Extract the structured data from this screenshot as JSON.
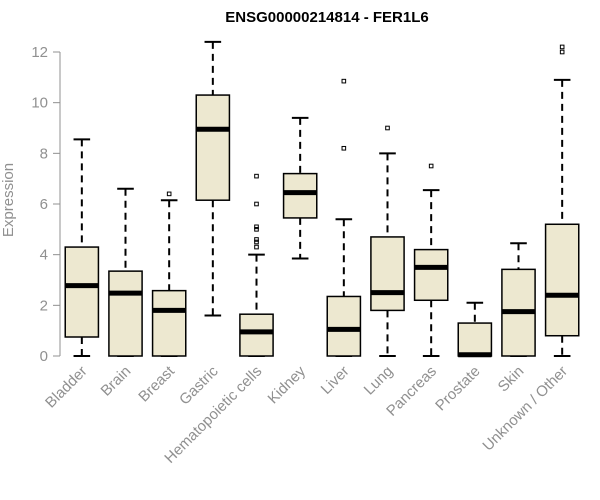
{
  "chart_data": {
    "type": "boxplot",
    "title": "ENSG00000214814 - FER1L6",
    "xlabel": "",
    "ylabel": "Expression",
    "ylim": [
      0,
      12
    ],
    "yticks": [
      0,
      2,
      4,
      6,
      8,
      10,
      12
    ],
    "grid": false,
    "box_color": "#ede8d0",
    "categories": [
      "Bladder",
      "Brain",
      "Breast",
      "Gastric",
      "Hematopoietic cells",
      "Kidney",
      "Liver",
      "Lung",
      "Pancreas",
      "Prostate",
      "Skin",
      "Unknown / Other"
    ],
    "boxes": [
      {
        "min": 0.0,
        "q1": 0.75,
        "median": 2.78,
        "q3": 4.3,
        "max": 8.55,
        "outliers": []
      },
      {
        "min": 0.0,
        "q1": 0.0,
        "median": 2.48,
        "q3": 3.35,
        "max": 6.6,
        "outliers": []
      },
      {
        "min": 0.0,
        "q1": 0.0,
        "median": 1.8,
        "q3": 2.58,
        "max": 6.15,
        "outliers": [
          6.4
        ]
      },
      {
        "min": 1.6,
        "q1": 6.15,
        "median": 8.95,
        "q3": 10.3,
        "max": 12.4,
        "outliers": []
      },
      {
        "min": 0.0,
        "q1": 0.0,
        "median": 0.95,
        "q3": 1.65,
        "max": 4.0,
        "outliers": [
          4.3,
          4.5,
          4.6,
          5.0,
          5.1,
          6.0,
          7.1
        ]
      },
      {
        "min": 3.85,
        "q1": 5.45,
        "median": 6.45,
        "q3": 7.2,
        "max": 9.4,
        "outliers": []
      },
      {
        "min": 0.0,
        "q1": 0.0,
        "median": 1.05,
        "q3": 2.35,
        "max": 5.4,
        "outliers": [
          8.2,
          10.85
        ]
      },
      {
        "min": 0.0,
        "q1": 1.8,
        "median": 2.5,
        "q3": 4.7,
        "max": 8.0,
        "outliers": [
          9.0
        ]
      },
      {
        "min": 0.0,
        "q1": 2.2,
        "median": 3.5,
        "q3": 4.2,
        "max": 6.55,
        "outliers": [
          7.5
        ]
      },
      {
        "min": 0.0,
        "q1": 0.0,
        "median": 0.05,
        "q3": 1.3,
        "max": 2.1,
        "outliers": []
      },
      {
        "min": 0.0,
        "q1": 0.0,
        "median": 1.75,
        "q3": 3.42,
        "max": 4.45,
        "outliers": []
      },
      {
        "min": 0.0,
        "q1": 0.8,
        "median": 2.4,
        "q3": 5.2,
        "max": 10.9,
        "outliers": [
          12.0,
          12.2
        ]
      }
    ]
  }
}
